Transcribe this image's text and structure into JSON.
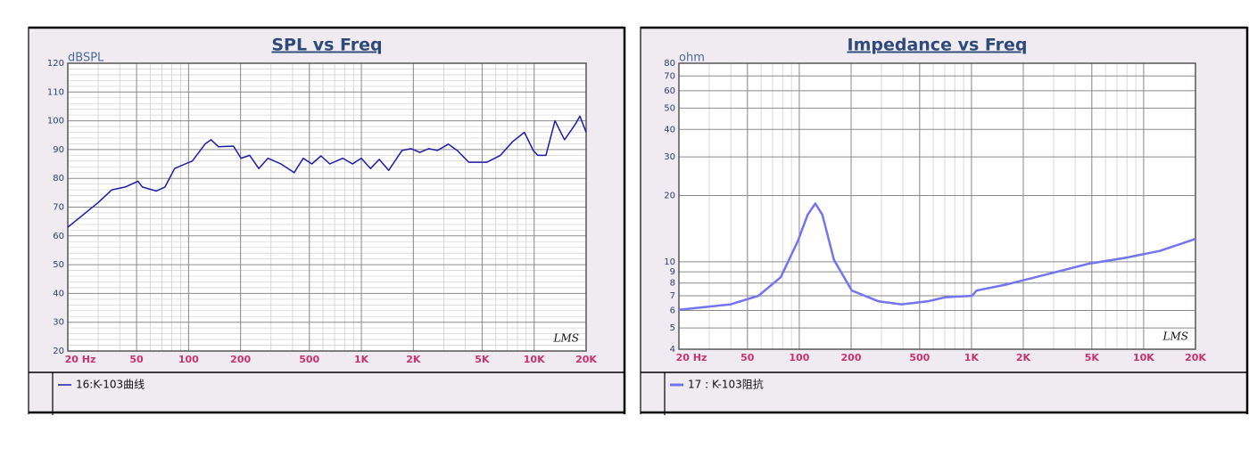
{
  "chart_data": [
    {
      "type": "line",
      "title": "SPL vs Freq",
      "y_label": "dBSPL",
      "annotation": "LMS",
      "x_scale": "log",
      "y_scale": "linear",
      "grid": true,
      "legend": "bottom",
      "xlim": [
        20,
        20000
      ],
      "ylim": [
        20,
        120
      ],
      "xticks": [
        {
          "value": 20,
          "label": "20 Hz"
        },
        50,
        100,
        200,
        500,
        {
          "value": 1000,
          "label": "1K"
        },
        {
          "value": 2000,
          "label": "2K"
        },
        {
          "value": 5000,
          "label": "5K"
        },
        {
          "value": 10000,
          "label": "10K"
        },
        {
          "value": 20000,
          "label": "20K"
        }
      ],
      "yticks": [
        20,
        30,
        40,
        50,
        60,
        70,
        80,
        90,
        100,
        110,
        120
      ],
      "x": [
        20,
        30,
        36,
        43,
        51,
        54,
        65,
        73,
        83,
        93,
        105,
        125,
        135,
        149,
        182,
        201,
        226,
        255,
        288,
        342,
        409,
        461,
        517,
        584,
        657,
        781,
        889,
        1000,
        1130,
        1270,
        1440,
        1720,
        1940,
        2180,
        2450,
        2760,
        3190,
        3590,
        4190,
        5330,
        6380,
        7520,
        8780,
        9880,
        10500,
        11700,
        13200,
        15000,
        17400,
        18400,
        20000
      ],
      "series": [
        {
          "name": "16:K-103曲线",
          "color": "#1c1ca8",
          "values": [
            63,
            71.6,
            76,
            77,
            79,
            77,
            75.6,
            77,
            83.4,
            84.7,
            86,
            92,
            93.4,
            91,
            91.2,
            87,
            88,
            83.4,
            87,
            85,
            82,
            87,
            85,
            87.8,
            85,
            87,
            85,
            87,
            83.4,
            86.6,
            82.8,
            89.7,
            90.3,
            89,
            90.3,
            89.7,
            91.9,
            89.7,
            85.6,
            85.6,
            88,
            92.8,
            96,
            89.7,
            88,
            88,
            100,
            93.4,
            99,
            101.6,
            96
          ]
        }
      ]
    },
    {
      "type": "line",
      "title": "Impedance vs Freq",
      "y_label": "ohm",
      "annotation": "LMS",
      "x_scale": "log",
      "y_scale": "log",
      "grid": true,
      "legend": "bottom",
      "xlim": [
        20,
        20000
      ],
      "ylim": [
        4,
        80
      ],
      "xticks": [
        {
          "value": 20,
          "label": "20 Hz"
        },
        50,
        100,
        200,
        500,
        {
          "value": 1000,
          "label": "1K"
        },
        {
          "value": 2000,
          "label": "2K"
        },
        {
          "value": 5000,
          "label": "5K"
        },
        {
          "value": 10000,
          "label": "10K"
        },
        {
          "value": 20000,
          "label": "20K"
        }
      ],
      "yticks": [
        4,
        5,
        6,
        7,
        8,
        9,
        10,
        20,
        30,
        40,
        50,
        60,
        70,
        80
      ],
      "x": [
        20,
        40,
        58,
        78,
        98,
        112,
        124,
        136,
        159,
        202,
        289,
        392,
        556,
        707,
        1010,
        1070,
        1620,
        2960,
        4800,
        7730,
        12400,
        20000
      ],
      "series": [
        {
          "name": "17 : K-103阻抗",
          "color": "#7474ee",
          "values": [
            6.05,
            6.4,
            7.0,
            8.5,
            12.4,
            16.4,
            18.4,
            16.4,
            10.2,
            7.4,
            6.6,
            6.4,
            6.6,
            6.9,
            7.0,
            7.4,
            7.9,
            8.9,
            9.8,
            10.4,
            11.2,
            12.7
          ]
        }
      ]
    }
  ]
}
